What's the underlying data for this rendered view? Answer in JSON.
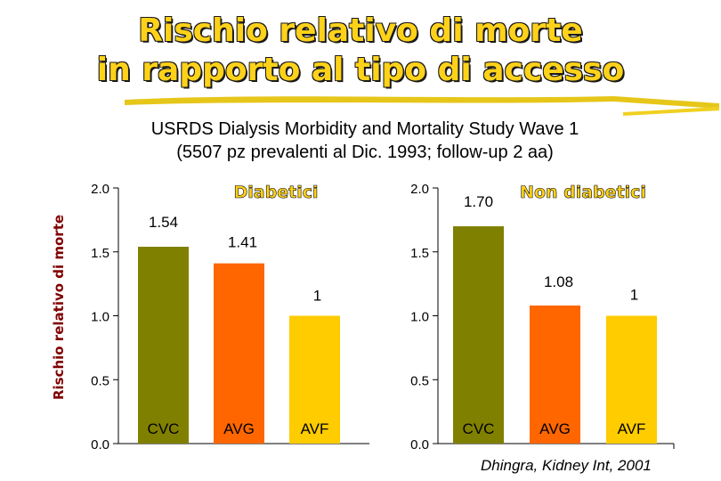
{
  "slide": {
    "title_line1": "Rischio relativo di morte",
    "title_line2": "in rapporto al tipo di accesso",
    "subtitle_line1": "USRDS Dialysis Morbidity and Mortality Study Wave 1",
    "subtitle_line2": "(5507 pz prevalenti al Dic. 1993; follow-up 2 aa)",
    "citation": "Dhingra, Kidney Int, 2001"
  },
  "colors": {
    "CVC": "#808000",
    "AVG": "#ff6600",
    "AVF": "#ffcc00",
    "title_fill": "#ffd21a",
    "ylabel": "#800000"
  },
  "chart_data": [
    {
      "type": "bar",
      "title": "Diabetici",
      "ylabel": "Rischio relativo di morte",
      "categories": [
        "CVC",
        "AVG",
        "AVF"
      ],
      "values": [
        1.54,
        1.41,
        1
      ],
      "value_labels": [
        "1.54",
        "1.41",
        "1"
      ],
      "ylim": [
        0,
        2.0
      ],
      "yticks": [
        "0.0",
        "0.5",
        "1.0",
        "1.5",
        "2.0"
      ],
      "grid": false
    },
    {
      "type": "bar",
      "title": "Non diabetici",
      "categories": [
        "CVC",
        "AVG",
        "AVF"
      ],
      "values": [
        1.7,
        1.08,
        1
      ],
      "value_labels": [
        "1.70",
        "1.08",
        "1"
      ],
      "ylim": [
        0,
        2.0
      ],
      "yticks": [
        "0.0",
        "0.5",
        "1.0",
        "1.5",
        "2.0"
      ],
      "grid": false
    }
  ]
}
